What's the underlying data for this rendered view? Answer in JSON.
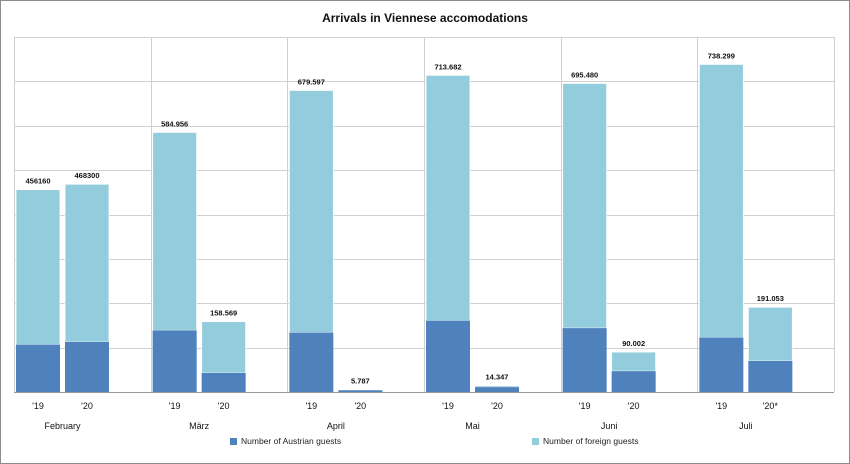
{
  "chart_data": {
    "type": "bar",
    "stacked": true,
    "title": "Arrivals in Viennese accomodations",
    "xlabel": "",
    "ylabel": "",
    "ylim": [
      0,
      800000
    ],
    "grid": true,
    "legend_position": "bottom",
    "groups": [
      {
        "label": "February",
        "bars": [
          {
            "tick": "'19",
            "austrian": 107000,
            "foreign": 349160,
            "total_label": "456160"
          },
          {
            "tick": "'20",
            "austrian": 113000,
            "foreign": 355300,
            "total_label": "468300"
          }
        ]
      },
      {
        "label": "März",
        "bars": [
          {
            "tick": "'19",
            "austrian": 139000,
            "foreign": 445956,
            "total_label": "584.956"
          },
          {
            "tick": "'20",
            "austrian": 43000,
            "foreign": 115569,
            "total_label": "158.569"
          }
        ]
      },
      {
        "label": "April",
        "bars": [
          {
            "tick": "'19",
            "austrian": 134000,
            "foreign": 545597,
            "total_label": "679.597"
          },
          {
            "tick": "'20",
            "austrian": 4000,
            "foreign": 1787,
            "total_label": "5.787"
          }
        ]
      },
      {
        "label": "Mai",
        "bars": [
          {
            "tick": "'19",
            "austrian": 161000,
            "foreign": 552682,
            "total_label": "713.682"
          },
          {
            "tick": "'20",
            "austrian": 11000,
            "foreign": 3347,
            "total_label": "14.347"
          }
        ]
      },
      {
        "label": "Juni",
        "bars": [
          {
            "tick": "'19",
            "austrian": 144000,
            "foreign": 551480,
            "total_label": "695.480"
          },
          {
            "tick": "'20",
            "austrian": 47000,
            "foreign": 43002,
            "total_label": "90.002"
          }
        ]
      },
      {
        "label": "Juli",
        "bars": [
          {
            "tick": "'19",
            "austrian": 123000,
            "foreign": 615299,
            "total_label": "738.299"
          },
          {
            "tick": "'20*",
            "austrian": 70000,
            "foreign": 121053,
            "total_label": "191.053"
          }
        ]
      }
    ],
    "series": [
      {
        "name": "Number of Austrian guests",
        "color": "#4f81bd"
      },
      {
        "name": "Number of foreign guests",
        "color": "#93cddd"
      }
    ]
  }
}
